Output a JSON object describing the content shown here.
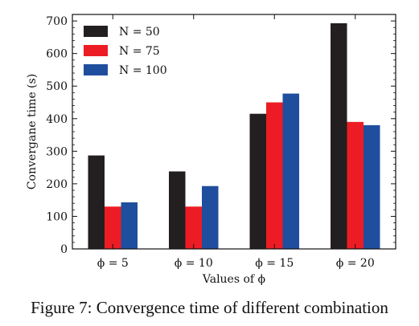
{
  "caption": "Figure 7: Convergence time of different combination",
  "chart_data": {
    "type": "bar",
    "categories": [
      "ϕ = 5",
      "ϕ = 10",
      "ϕ = 15",
      "ϕ = 20"
    ],
    "series": [
      {
        "name": "N = 50",
        "color": "#231f20",
        "values": [
          287,
          238,
          415,
          693
        ]
      },
      {
        "name": "N = 75",
        "color": "#ed1c24",
        "values": [
          130,
          130,
          450,
          390
        ]
      },
      {
        "name": "N = 100",
        "color": "#1f4e9e",
        "values": [
          143,
          193,
          477,
          380
        ]
      }
    ],
    "xlabel": "Values of ϕ",
    "ylabel": "Convergane time (s)",
    "ylim": [
      0,
      720
    ],
    "yticks": [
      0,
      100,
      200,
      300,
      400,
      500,
      600,
      700
    ],
    "grid": false,
    "legend": "top-left"
  }
}
